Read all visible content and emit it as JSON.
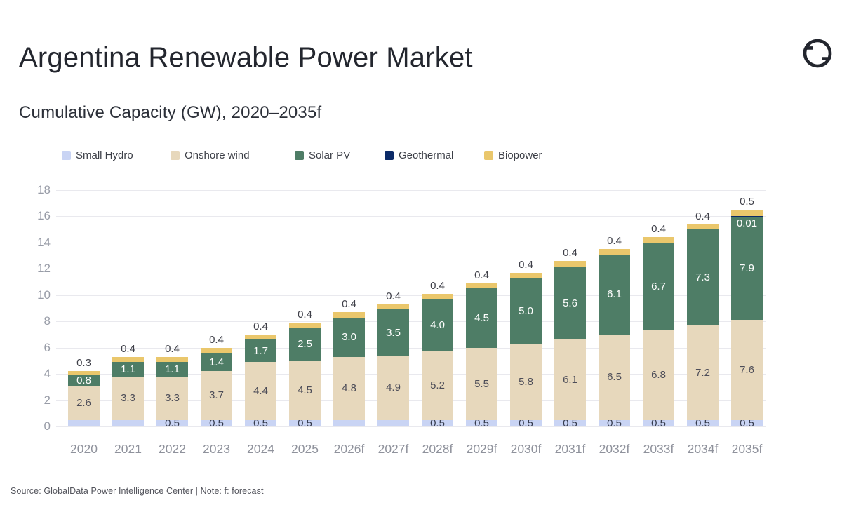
{
  "header": {
    "title": "Argentina Renewable Power Market",
    "subtitle": "Cumulative Capacity (GW), 2020–2035f"
  },
  "footer": {
    "source_note": "Source: GlobalData Power Intelligence Center | Note: f: forecast"
  },
  "chart_data": {
    "type": "bar",
    "stacked": true,
    "title": "Argentina Renewable Power Market",
    "subtitle": "Cumulative Capacity (GW), 2020–2035f",
    "xlabel": "",
    "ylabel": "",
    "ylim": [
      0,
      18
    ],
    "yticks": [
      0,
      2,
      4,
      6,
      8,
      10,
      12,
      14,
      16,
      18
    ],
    "grid": true,
    "legend_position": "top",
    "categories": [
      "2020",
      "2021",
      "2022",
      "2023",
      "2024",
      "2025",
      "2026f",
      "2027f",
      "2028f",
      "2029f",
      "2030f",
      "2031f",
      "2032f",
      "2033f",
      "2034f",
      "2035f"
    ],
    "series": [
      {
        "name": "Small Hydro",
        "color": "#c9d4f4",
        "label_color": "#363c4e",
        "label_placement": "inside",
        "values": [
          0.5,
          0.5,
          0.5,
          0.5,
          0.5,
          0.5,
          0.5,
          0.5,
          0.5,
          0.5,
          0.5,
          0.5,
          0.5,
          0.5,
          0.5,
          0.5
        ],
        "labels": [
          "",
          "",
          "0.5",
          "0.5",
          "0.5",
          "0.5",
          "",
          "",
          "0.5",
          "0.5",
          "0.5",
          "0.5",
          "0.5",
          "0.5",
          "0.5",
          "0.5"
        ]
      },
      {
        "name": "Onshore wind",
        "color": "#e7d8bc",
        "label_color": "#4d4d58",
        "label_placement": "inside",
        "values": [
          2.6,
          3.3,
          3.3,
          3.7,
          4.4,
          4.5,
          4.8,
          4.9,
          5.2,
          5.5,
          5.8,
          6.1,
          6.5,
          6.8,
          7.2,
          7.6
        ],
        "labels": [
          "2.6",
          "3.3",
          "3.3",
          "3.7",
          "4.4",
          "4.5",
          "4.8",
          "4.9",
          "5.2",
          "5.5",
          "5.8",
          "6.1",
          "6.5",
          "6.8",
          "7.2",
          "7.6"
        ]
      },
      {
        "name": "Solar PV",
        "color": "#4e7d66",
        "label_color": "#ffffff",
        "label_placement": "inside",
        "values": [
          0.8,
          1.1,
          1.1,
          1.4,
          1.7,
          2.5,
          3.0,
          3.5,
          4.0,
          4.5,
          5.0,
          5.6,
          6.1,
          6.7,
          7.3,
          7.9
        ],
        "labels": [
          "0.8",
          "1.1",
          "1.1",
          "1.4",
          "1.7",
          "2.5",
          "3.0",
          "3.5",
          "4.0",
          "4.5",
          "5.0",
          "5.6",
          "6.1",
          "6.7",
          "7.3",
          "7.9"
        ]
      },
      {
        "name": "Geothermal",
        "color": "#0b2a68",
        "label_color": "#ffffff",
        "label_placement": "top-inside",
        "values": [
          0,
          0,
          0,
          0,
          0,
          0,
          0,
          0,
          0,
          0,
          0,
          0,
          0,
          0,
          0,
          0.01
        ],
        "labels": [
          "",
          "",
          "",
          "",
          "",
          "",
          "",
          "",
          "",
          "",
          "",
          "",
          "",
          "",
          "",
          "0.01"
        ]
      },
      {
        "name": "Biopower",
        "color": "#eac76c",
        "label_color": "#3f4049",
        "label_placement": "above",
        "values": [
          0.3,
          0.4,
          0.4,
          0.4,
          0.4,
          0.4,
          0.4,
          0.4,
          0.4,
          0.4,
          0.4,
          0.4,
          0.4,
          0.4,
          0.4,
          0.5
        ],
        "labels": [
          "0.3",
          "0.4",
          "0.4",
          "0.4",
          "0.4",
          "0.4",
          "0.4",
          "0.4",
          "0.4",
          "0.4",
          "0.4",
          "0.4",
          "0.4",
          "0.4",
          "0.4",
          "0.5"
        ]
      }
    ]
  }
}
